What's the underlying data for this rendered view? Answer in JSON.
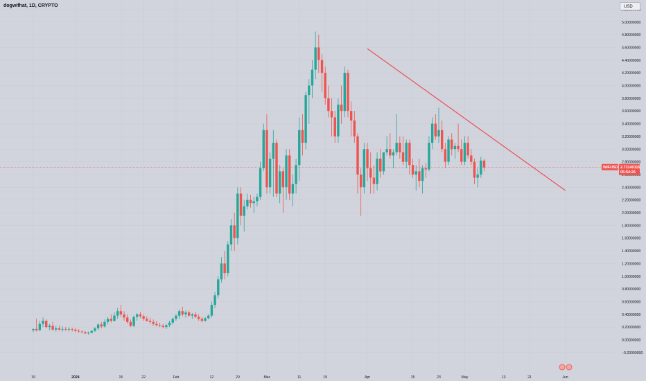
{
  "header": {
    "symbol_line": "dogwifhat, 1D, CRYPTO"
  },
  "currency_button": "USD",
  "price_label": {
    "ticker": "WIFUSD",
    "price": "2.71140115",
    "countdown": "05:54:26"
  },
  "colors": {
    "up": "#26a69a",
    "down": "#ef5350",
    "trendline": "#ef4e57",
    "background": "#d1d4dc"
  },
  "chart_data": {
    "type": "candlestick",
    "title": "dogwifhat, 1D, CRYPTO",
    "ylim": [
      -0.2,
      5.3
    ],
    "y_ticks": [
      "5.20000000",
      "5.00000000",
      "4.80000000",
      "4.60000000",
      "4.40000000",
      "4.20000000",
      "4.00000000",
      "3.80000000",
      "3.60000000",
      "3.40000000",
      "3.20000000",
      "3.00000000",
      "2.80000000",
      "2.60000000",
      "2.40000000",
      "2.20000000",
      "2.00000000",
      "1.80000000",
      "1.60000000",
      "1.40000000",
      "1.20000000",
      "1.00000000",
      "0.80000000",
      "0.60000000",
      "0.40000000",
      "0.20000000",
      "0.00000000",
      "−0.20000000"
    ],
    "x_ticks": [
      {
        "label": "19",
        "bar": 0
      },
      {
        "label": "2024",
        "bar": 13,
        "bold": true
      },
      {
        "label": "15",
        "bar": 27
      },
      {
        "label": "22",
        "bar": 34
      },
      {
        "label": "Feb",
        "bar": 44
      },
      {
        "label": "12",
        "bar": 55
      },
      {
        "label": "20",
        "bar": 63
      },
      {
        "label": "Mar",
        "bar": 72
      },
      {
        "label": "11",
        "bar": 82
      },
      {
        "label": "19",
        "bar": 90
      },
      {
        "label": "Apr",
        "bar": 103
      },
      {
        "label": "15",
        "bar": 117
      },
      {
        "label": "23",
        "bar": 125
      },
      {
        "label": "May",
        "bar": 133
      },
      {
        "label": "13",
        "bar": 145
      },
      {
        "label": "21",
        "bar": 153
      },
      {
        "label": "Jun",
        "bar": 164
      }
    ],
    "bar_spacing_days": 1,
    "last_price": 2.71140115,
    "candles": [
      [
        0.15,
        0.18,
        0.12,
        0.17
      ],
      [
        0.17,
        0.33,
        0.13,
        0.15
      ],
      [
        0.15,
        0.3,
        0.14,
        0.25
      ],
      [
        0.25,
        0.35,
        0.2,
        0.3
      ],
      [
        0.3,
        0.32,
        0.18,
        0.2
      ],
      [
        0.2,
        0.25,
        0.15,
        0.22
      ],
      [
        0.22,
        0.28,
        0.14,
        0.16
      ],
      [
        0.16,
        0.22,
        0.13,
        0.18
      ],
      [
        0.18,
        0.22,
        0.14,
        0.16
      ],
      [
        0.16,
        0.21,
        0.13,
        0.17
      ],
      [
        0.17,
        0.2,
        0.14,
        0.16
      ],
      [
        0.16,
        0.2,
        0.13,
        0.17
      ],
      [
        0.17,
        0.19,
        0.13,
        0.16
      ],
      [
        0.16,
        0.18,
        0.12,
        0.14
      ],
      [
        0.14,
        0.17,
        0.11,
        0.13
      ],
      [
        0.13,
        0.15,
        0.1,
        0.12
      ],
      [
        0.12,
        0.14,
        0.09,
        0.1
      ],
      [
        0.1,
        0.13,
        0.08,
        0.11
      ],
      [
        0.11,
        0.15,
        0.1,
        0.14
      ],
      [
        0.14,
        0.2,
        0.12,
        0.18
      ],
      [
        0.18,
        0.26,
        0.15,
        0.24
      ],
      [
        0.24,
        0.28,
        0.18,
        0.21
      ],
      [
        0.21,
        0.32,
        0.19,
        0.28
      ],
      [
        0.28,
        0.36,
        0.24,
        0.33
      ],
      [
        0.33,
        0.4,
        0.27,
        0.3
      ],
      [
        0.3,
        0.43,
        0.28,
        0.38
      ],
      [
        0.38,
        0.5,
        0.33,
        0.45
      ],
      [
        0.45,
        0.55,
        0.36,
        0.4
      ],
      [
        0.4,
        0.45,
        0.3,
        0.35
      ],
      [
        0.35,
        0.4,
        0.25,
        0.28
      ],
      [
        0.28,
        0.32,
        0.2,
        0.22
      ],
      [
        0.22,
        0.38,
        0.2,
        0.36
      ],
      [
        0.36,
        0.42,
        0.3,
        0.4
      ],
      [
        0.4,
        0.44,
        0.34,
        0.37
      ],
      [
        0.37,
        0.4,
        0.3,
        0.33
      ],
      [
        0.33,
        0.37,
        0.28,
        0.3
      ],
      [
        0.3,
        0.35,
        0.25,
        0.28
      ],
      [
        0.28,
        0.32,
        0.22,
        0.25
      ],
      [
        0.25,
        0.3,
        0.21,
        0.23
      ],
      [
        0.23,
        0.27,
        0.2,
        0.22
      ],
      [
        0.22,
        0.25,
        0.18,
        0.2
      ],
      [
        0.2,
        0.25,
        0.17,
        0.23
      ],
      [
        0.23,
        0.3,
        0.2,
        0.27
      ],
      [
        0.27,
        0.35,
        0.24,
        0.33
      ],
      [
        0.33,
        0.4,
        0.3,
        0.38
      ],
      [
        0.38,
        0.48,
        0.33,
        0.45
      ],
      [
        0.45,
        0.52,
        0.37,
        0.4
      ],
      [
        0.4,
        0.46,
        0.35,
        0.43
      ],
      [
        0.43,
        0.46,
        0.36,
        0.38
      ],
      [
        0.38,
        0.42,
        0.33,
        0.4
      ],
      [
        0.4,
        0.44,
        0.34,
        0.36
      ],
      [
        0.36,
        0.4,
        0.3,
        0.33
      ],
      [
        0.33,
        0.36,
        0.27,
        0.3
      ],
      [
        0.3,
        0.36,
        0.28,
        0.34
      ],
      [
        0.34,
        0.4,
        0.32,
        0.38
      ],
      [
        0.38,
        0.6,
        0.35,
        0.55
      ],
      [
        0.55,
        0.75,
        0.5,
        0.7
      ],
      [
        0.7,
        1.0,
        0.65,
        0.95
      ],
      [
        0.95,
        1.3,
        0.9,
        1.2
      ],
      [
        1.2,
        1.4,
        0.95,
        1.05
      ],
      [
        1.05,
        1.55,
        1.0,
        1.5
      ],
      [
        1.5,
        1.9,
        1.4,
        1.8
      ],
      [
        1.8,
        2.0,
        1.4,
        1.6
      ],
      [
        1.6,
        2.4,
        1.5,
        2.3
      ],
      [
        2.3,
        2.4,
        1.8,
        1.95
      ],
      [
        1.95,
        2.2,
        1.7,
        2.1
      ],
      [
        2.1,
        2.3,
        2.05,
        2.2
      ],
      [
        2.2,
        2.28,
        2.08,
        2.15
      ],
      [
        2.15,
        2.25,
        2.0,
        2.18
      ],
      [
        2.18,
        2.3,
        2.1,
        2.25
      ],
      [
        2.25,
        2.8,
        2.2,
        2.7
      ],
      [
        2.7,
        3.4,
        2.65,
        3.3
      ],
      [
        3.3,
        3.55,
        2.3,
        2.4
      ],
      [
        2.4,
        2.95,
        2.3,
        2.85
      ],
      [
        2.85,
        3.3,
        2.25,
        3.1
      ],
      [
        3.1,
        3.15,
        2.25,
        2.3
      ],
      [
        2.3,
        2.75,
        2.15,
        2.65
      ],
      [
        2.65,
        2.7,
        2.0,
        2.4
      ],
      [
        2.4,
        3.0,
        2.2,
        2.9
      ],
      [
        2.9,
        3.0,
        2.2,
        2.3
      ],
      [
        2.3,
        2.6,
        2.1,
        2.45
      ],
      [
        2.45,
        2.85,
        2.3,
        2.75
      ],
      [
        2.75,
        3.5,
        2.5,
        3.3
      ],
      [
        3.3,
        3.55,
        2.9,
        3.1
      ],
      [
        3.1,
        3.9,
        3.0,
        3.85
      ],
      [
        3.85,
        4.1,
        3.4,
        4.0
      ],
      [
        4.0,
        4.4,
        3.8,
        4.25
      ],
      [
        4.25,
        4.85,
        4.1,
        4.6
      ],
      [
        4.6,
        4.8,
        4.2,
        4.4
      ],
      [
        4.4,
        4.5,
        3.9,
        4.2
      ],
      [
        4.2,
        4.3,
        3.7,
        3.8
      ],
      [
        3.8,
        4.0,
        3.5,
        3.6
      ],
      [
        3.6,
        3.8,
        3.2,
        3.5
      ],
      [
        3.5,
        3.6,
        3.1,
        3.2
      ],
      [
        3.2,
        3.8,
        3.1,
        3.7
      ],
      [
        3.7,
        4.0,
        3.4,
        3.6
      ],
      [
        3.6,
        4.3,
        3.5,
        4.2
      ],
      [
        4.2,
        4.25,
        3.5,
        3.6
      ],
      [
        3.6,
        3.75,
        3.2,
        3.45
      ],
      [
        3.45,
        3.6,
        3.1,
        3.2
      ],
      [
        3.2,
        3.25,
        2.3,
        2.6
      ],
      [
        2.6,
        2.7,
        1.95,
        2.4
      ],
      [
        2.4,
        3.1,
        2.3,
        3.0
      ],
      [
        3.0,
        3.1,
        2.5,
        2.7
      ],
      [
        2.7,
        2.95,
        2.3,
        2.55
      ],
      [
        2.55,
        2.75,
        2.3,
        2.45
      ],
      [
        2.45,
        2.95,
        2.35,
        2.85
      ],
      [
        2.85,
        3.0,
        2.55,
        2.65
      ],
      [
        2.65,
        2.95,
        2.6,
        2.95
      ],
      [
        2.95,
        3.2,
        2.9,
        3.0
      ],
      [
        3.0,
        3.25,
        2.85,
        2.9
      ],
      [
        2.9,
        3.0,
        2.7,
        2.95
      ],
      [
        2.95,
        3.55,
        2.9,
        3.1
      ],
      [
        3.1,
        3.2,
        2.85,
        2.95
      ],
      [
        2.95,
        3.2,
        2.75,
        2.8
      ],
      [
        2.8,
        3.15,
        2.7,
        3.1
      ],
      [
        3.1,
        3.15,
        2.6,
        2.75
      ],
      [
        2.75,
        2.85,
        2.55,
        2.6
      ],
      [
        2.6,
        2.75,
        2.35,
        2.65
      ],
      [
        2.65,
        2.85,
        2.4,
        2.5
      ],
      [
        2.5,
        2.75,
        2.3,
        2.7
      ],
      [
        2.7,
        2.78,
        2.55,
        2.68
      ],
      [
        2.68,
        3.2,
        2.65,
        3.1
      ],
      [
        3.1,
        3.5,
        3.0,
        3.4
      ],
      [
        3.4,
        3.55,
        3.15,
        3.2
      ],
      [
        3.2,
        3.65,
        3.1,
        3.3
      ],
      [
        3.3,
        3.45,
        2.95,
        3.0
      ],
      [
        3.0,
        3.1,
        2.7,
        2.8
      ],
      [
        2.8,
        3.2,
        2.75,
        3.15
      ],
      [
        3.15,
        3.25,
        2.9,
        3.0
      ],
      [
        3.0,
        3.1,
        2.85,
        3.05
      ],
      [
        3.05,
        3.4,
        2.95,
        3.0
      ],
      [
        3.0,
        3.15,
        2.75,
        2.8
      ],
      [
        2.8,
        3.2,
        2.75,
        3.1
      ],
      [
        3.1,
        3.2,
        2.85,
        2.9
      ],
      [
        2.9,
        3.0,
        2.75,
        2.8
      ],
      [
        2.8,
        2.85,
        2.45,
        2.55
      ],
      [
        2.55,
        2.7,
        2.4,
        2.6
      ],
      [
        2.6,
        2.88,
        2.55,
        2.82
      ],
      [
        2.82,
        2.85,
        2.65,
        2.71
      ]
    ],
    "trendline": {
      "from": {
        "bar": 103,
        "price": 4.58
      },
      "to": {
        "bar": 164,
        "price": 2.35
      }
    }
  }
}
